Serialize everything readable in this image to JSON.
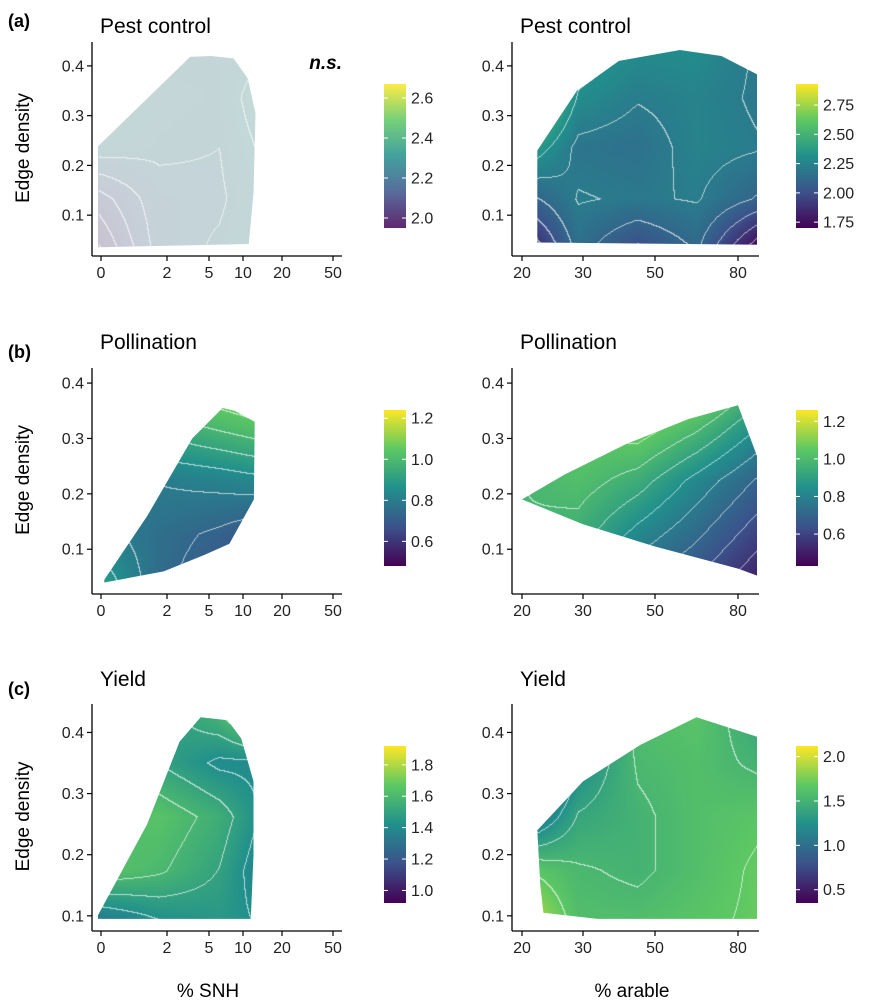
{
  "panel_letters": [
    "(a)",
    "(b)",
    "(c)"
  ],
  "x_axis_labels": [
    "% SNH",
    "% arable"
  ],
  "colors": {
    "viridis": [
      "#440154",
      "#3b528b",
      "#21908c",
      "#5dc863",
      "#fde725"
    ],
    "contour": "#ffffff",
    "axis": "#000000"
  },
  "chart_data": [
    {
      "type": "heatmap",
      "id": "pest-snh",
      "row": 0,
      "col": 0,
      "letter": "(a)",
      "title": "Pest control",
      "annotation": "n.s.",
      "faded": true,
      "ylabel": "Edge density",
      "xlabel": "",
      "x_ticks": [
        "0",
        "2",
        "5",
        "10",
        "20",
        "50"
      ],
      "y_ticks": [
        "0.1",
        "0.2",
        "0.3",
        "0.4"
      ],
      "y_tick_values": [
        0.1,
        0.2,
        0.3,
        0.4
      ],
      "ylim": [
        0.03,
        0.44
      ],
      "colorbar": {
        "ticks": [
          "2.0",
          "2.2",
          "2.4",
          "2.6"
        ],
        "tick_values": [
          2.0,
          2.2,
          2.4,
          2.6
        ],
        "range": [
          1.95,
          2.67
        ]
      },
      "value_range": [
        1.95,
        2.67
      ],
      "surface": [
        [
          2.0,
          2.22,
          2.26,
          2.33,
          2.55
        ],
        [
          2.1,
          2.23,
          2.24,
          2.32,
          2.6
        ],
        [
          2.28,
          2.26,
          2.25,
          2.35,
          2.62
        ],
        [
          2.34,
          2.27,
          2.26,
          2.4,
          2.5
        ],
        [
          2.3,
          2.25,
          2.26,
          2.3,
          2.4
        ]
      ],
      "domain_polygon": [
        [
          -0.2,
          0.035
        ],
        [
          3.15,
          0.042
        ],
        [
          3.27,
          0.145
        ],
        [
          3.32,
          0.305
        ],
        [
          3.12,
          0.375
        ],
        [
          2.72,
          0.415
        ],
        [
          2.05,
          0.42
        ],
        [
          1.55,
          0.418
        ],
        [
          -0.15,
          0.225
        ]
      ]
    },
    {
      "type": "heatmap",
      "id": "pest-arable",
      "row": 0,
      "col": 1,
      "title": "Pest control",
      "annotation": "",
      "faded": false,
      "ylabel": "",
      "xlabel": "",
      "x_ticks": [
        "20",
        "30",
        "50",
        "80"
      ],
      "y_ticks": [
        "0.1",
        "0.2",
        "0.3",
        "0.4"
      ],
      "y_tick_values": [
        0.1,
        0.2,
        0.3,
        0.4
      ],
      "ylim": [
        0.03,
        0.44
      ],
      "colorbar": {
        "ticks": [
          "1.75",
          "2.00",
          "2.25",
          "2.50",
          "2.75"
        ],
        "tick_values": [
          1.75,
          2.0,
          2.25,
          2.5,
          2.75
        ],
        "range": [
          1.7,
          2.93
        ]
      },
      "value_range": [
        1.7,
        2.93
      ],
      "surface": [
        [
          1.72,
          2.15,
          1.98,
          2.12,
          1.72
        ],
        [
          2.05,
          2.22,
          2.2,
          2.22,
          2.1
        ],
        [
          2.45,
          2.18,
          2.16,
          2.25,
          2.22
        ],
        [
          2.8,
          2.3,
          2.22,
          2.25,
          2.2
        ],
        [
          2.9,
          2.4,
          2.3,
          2.3,
          2.2
        ]
      ],
      "domain_polygon": [
        [
          0.25,
          0.045
        ],
        [
          3.6,
          0.04
        ],
        [
          3.65,
          0.17
        ],
        [
          3.5,
          0.36
        ],
        [
          2.8,
          0.42
        ],
        [
          2.3,
          0.432
        ],
        [
          1.5,
          0.41
        ],
        [
          0.9,
          0.35
        ],
        [
          0.25,
          0.23
        ]
      ]
    },
    {
      "type": "heatmap",
      "id": "poll-snh",
      "row": 1,
      "col": 0,
      "letter": "(b)",
      "title": "Pollination",
      "annotation": "",
      "faded": false,
      "ylabel": "Edge density",
      "xlabel": "",
      "x_ticks": [
        "0",
        "2",
        "5",
        "10",
        "20",
        "50"
      ],
      "y_ticks": [
        "0.1",
        "0.2",
        "0.3",
        "0.4"
      ],
      "y_tick_values": [
        0.1,
        0.2,
        0.3,
        0.4
      ],
      "ylim": [
        0.03,
        0.42
      ],
      "colorbar": {
        "ticks": [
          "0.6",
          "0.8",
          "1.0",
          "1.2"
        ],
        "tick_values": [
          0.6,
          0.8,
          1.0,
          1.2
        ],
        "range": [
          0.48,
          1.24
        ]
      },
      "value_range": [
        0.48,
        1.24
      ],
      "surface": [
        [
          0.92,
          0.75,
          0.68,
          0.6,
          0.52
        ],
        [
          0.82,
          0.76,
          0.72,
          0.66,
          0.62
        ],
        [
          0.78,
          0.8,
          0.82,
          0.85,
          0.88
        ],
        [
          0.9,
          0.95,
          1.0,
          1.05,
          1.1
        ],
        [
          1.05,
          1.1,
          1.15,
          1.2,
          1.23
        ]
      ],
      "domain_polygon": [
        [
          0.05,
          0.04
        ],
        [
          0.95,
          0.06
        ],
        [
          1.9,
          0.09
        ],
        [
          2.6,
          0.11
        ],
        [
          3.28,
          0.19
        ],
        [
          3.3,
          0.33
        ],
        [
          2.75,
          0.35
        ],
        [
          2.4,
          0.355
        ],
        [
          1.6,
          0.3
        ],
        [
          0.7,
          0.16
        ],
        [
          0.05,
          0.045
        ]
      ]
    },
    {
      "type": "heatmap",
      "id": "poll-arable",
      "row": 1,
      "col": 1,
      "title": "Pollination",
      "annotation": "",
      "faded": false,
      "ylabel": "",
      "xlabel": "",
      "x_ticks": [
        "20",
        "30",
        "50",
        "80"
      ],
      "y_ticks": [
        "0.1",
        "0.2",
        "0.3",
        "0.4"
      ],
      "y_tick_values": [
        0.1,
        0.2,
        0.3,
        0.4
      ],
      "ylim": [
        0.03,
        0.42
      ],
      "colorbar": {
        "ticks": [
          "0.6",
          "0.8",
          "1.0",
          "1.2"
        ],
        "tick_values": [
          0.6,
          0.8,
          1.0,
          1.2
        ],
        "range": [
          0.43,
          1.26
        ]
      },
      "value_range": [
        0.43,
        1.26
      ],
      "surface": [
        [
          0.95,
          0.85,
          0.7,
          0.62,
          0.5
        ],
        [
          0.98,
          0.95,
          0.82,
          0.72,
          0.6
        ],
        [
          0.98,
          1.02,
          0.95,
          0.82,
          0.7
        ],
        [
          1.0,
          1.05,
          1.1,
          1.0,
          0.85
        ],
        [
          1.0,
          1.1,
          1.18,
          1.22,
          1.0
        ]
      ],
      "domain_polygon": [
        [
          0.0,
          0.19
        ],
        [
          1.0,
          0.145
        ],
        [
          2.0,
          0.105
        ],
        [
          3.0,
          0.065
        ],
        [
          3.55,
          0.035
        ],
        [
          3.6,
          0.07
        ],
        [
          3.3,
          0.24
        ],
        [
          3.0,
          0.36
        ],
        [
          2.4,
          0.335
        ],
        [
          1.6,
          0.29
        ],
        [
          0.7,
          0.235
        ]
      ]
    },
    {
      "type": "heatmap",
      "id": "yield-snh",
      "row": 2,
      "col": 0,
      "letter": "(c)",
      "title": "Yield",
      "annotation": "",
      "faded": false,
      "ylabel": "Edge density",
      "xlabel": "% SNH",
      "x_ticks": [
        "0",
        "2",
        "5",
        "10",
        "20",
        "50"
      ],
      "y_ticks": [
        "0.1",
        "0.2",
        "0.3",
        "0.4"
      ],
      "y_tick_values": [
        0.1,
        0.2,
        0.3,
        0.4
      ],
      "ylim": [
        0.085,
        0.44
      ],
      "colorbar": {
        "ticks": [
          "1.0",
          "1.2",
          "1.4",
          "1.6",
          "1.8"
        ],
        "tick_values": [
          1.0,
          1.2,
          1.4,
          1.6,
          1.8
        ],
        "range": [
          0.92,
          1.92
        ]
      },
      "value_range": [
        0.92,
        1.92
      ],
      "surface": [
        [
          1.3,
          1.4,
          1.45,
          1.4,
          1.35
        ],
        [
          1.65,
          1.6,
          1.5,
          1.3,
          1.05
        ],
        [
          1.6,
          1.65,
          1.55,
          1.35,
          1.0
        ],
        [
          1.45,
          1.5,
          1.4,
          1.4,
          1.25
        ],
        [
          1.4,
          1.45,
          1.6,
          1.9,
          1.4
        ]
      ],
      "domain_polygon": [
        [
          -0.1,
          0.095
        ],
        [
          3.2,
          0.095
        ],
        [
          3.27,
          0.2
        ],
        [
          3.27,
          0.32
        ],
        [
          2.95,
          0.39
        ],
        [
          2.55,
          0.42
        ],
        [
          1.8,
          0.425
        ],
        [
          1.3,
          0.385
        ],
        [
          0.7,
          0.25
        ],
        [
          -0.05,
          0.1
        ]
      ]
    },
    {
      "type": "heatmap",
      "id": "yield-arable",
      "row": 2,
      "col": 1,
      "title": "Yield",
      "annotation": "",
      "faded": false,
      "ylabel": "",
      "xlabel": "% arable",
      "x_ticks": [
        "20",
        "30",
        "50",
        "80"
      ],
      "y_ticks": [
        "0.1",
        "0.2",
        "0.3",
        "0.4"
      ],
      "y_tick_values": [
        0.1,
        0.2,
        0.3,
        0.4
      ],
      "ylim": [
        0.085,
        0.44
      ],
      "colorbar": {
        "ticks": [
          "0.5",
          "1.0",
          "1.5",
          "2.0"
        ],
        "tick_values": [
          0.5,
          1.0,
          1.5,
          2.0
        ],
        "range": [
          0.35,
          2.12
        ]
      },
      "value_range": [
        0.35,
        2.12
      ],
      "surface": [
        [
          2.05,
          1.6,
          1.6,
          1.65,
          1.7
        ],
        [
          1.7,
          1.55,
          1.5,
          1.6,
          1.7
        ],
        [
          0.9,
          1.4,
          1.5,
          1.6,
          1.65
        ],
        [
          0.45,
          1.2,
          1.55,
          1.6,
          1.5
        ],
        [
          0.4,
          1.0,
          1.6,
          1.65,
          1.4
        ]
      ],
      "domain_polygon": [
        [
          0.35,
          0.105
        ],
        [
          1.2,
          0.095
        ],
        [
          2.0,
          0.095
        ],
        [
          3.65,
          0.095
        ],
        [
          3.7,
          0.2
        ],
        [
          3.55,
          0.3
        ],
        [
          3.3,
          0.39
        ],
        [
          2.5,
          0.425
        ],
        [
          1.8,
          0.38
        ],
        [
          1.0,
          0.32
        ],
        [
          0.25,
          0.24
        ],
        [
          0.3,
          0.15
        ]
      ]
    }
  ]
}
